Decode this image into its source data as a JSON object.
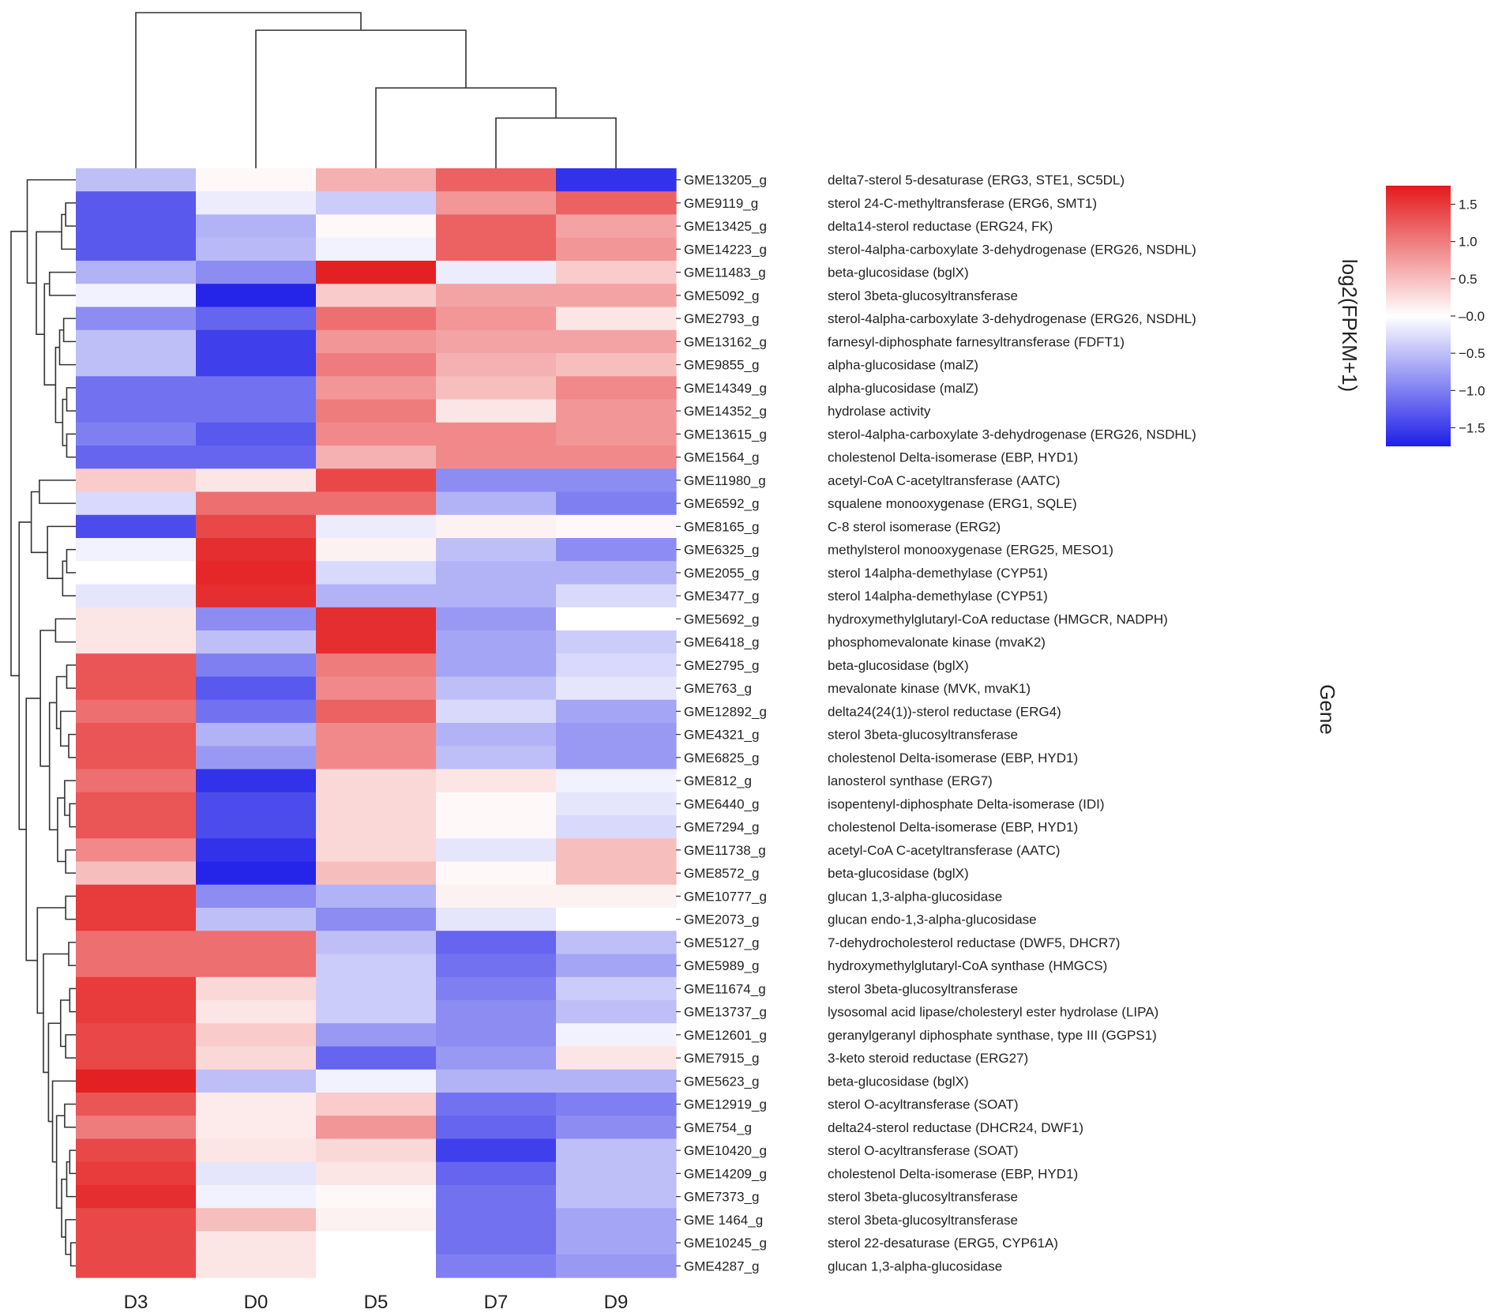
{
  "chart_data": {
    "type": "heatmap",
    "colormap": {
      "low": "#1f1fe8",
      "mid": "#ffffff",
      "high": "#e31a1c"
    },
    "value_range": [
      -1.75,
      1.75
    ],
    "columns": [
      "D3",
      "D0",
      "D5",
      "D7",
      "D9"
    ],
    "rows": [
      {
        "id": "GME13205_g",
        "description": "delta7-sterol 5-desaturase (ERG3, STE1, SC5DL)",
        "values": [
          -0.5,
          0.05,
          0.6,
          1.2,
          -1.6
        ]
      },
      {
        "id": "GME9119_g",
        "description": "sterol 24-C-methyltransferase (ERG6, SMT1)",
        "values": [
          -1.3,
          -0.15,
          -0.4,
          0.8,
          1.2
        ]
      },
      {
        "id": "GME13425_g",
        "description": "delta14-sterol reductase (ERG24, FK)",
        "values": [
          -1.3,
          -0.6,
          0.05,
          1.2,
          0.7
        ]
      },
      {
        "id": "GME14223_g",
        "description": "sterol-4alpha-carboxylate 3-dehydrogenase (ERG26, NSDHL)",
        "values": [
          -1.3,
          -0.55,
          -0.1,
          1.2,
          0.8
        ]
      },
      {
        "id": "GME11483_g",
        "description": "beta-glucosidase (bglX)",
        "values": [
          -0.6,
          -0.9,
          1.7,
          -0.15,
          0.4
        ]
      },
      {
        "id": "GME5092_g",
        "description": "sterol 3beta-glucosyltransferase",
        "values": [
          -0.1,
          -1.7,
          0.4,
          0.7,
          0.7
        ]
      },
      {
        "id": "GME2793_g",
        "description": "sterol-4alpha-carboxylate 3-dehydrogenase (ERG26, NSDHL)",
        "values": [
          -0.9,
          -1.2,
          1.1,
          0.8,
          0.2
        ]
      },
      {
        "id": "GME13162_g",
        "description": "farnesyl-diphosphate farnesyltransferase (FDFT1)",
        "values": [
          -0.5,
          -1.5,
          0.8,
          0.7,
          0.7
        ]
      },
      {
        "id": "GME9855_g",
        "description": "alpha-glucosidase (malZ)",
        "values": [
          -0.5,
          -1.5,
          1.0,
          0.6,
          0.5
        ]
      },
      {
        "id": "GME14349_g",
        "description": "alpha-glucosidase (malZ)",
        "values": [
          -1.1,
          -1.1,
          0.8,
          0.5,
          0.9
        ]
      },
      {
        "id": "GME14352_g",
        "description": "hydrolase activity",
        "values": [
          -1.1,
          -1.1,
          1.0,
          0.2,
          0.8
        ]
      },
      {
        "id": "GME13615_g",
        "description": "sterol-4alpha-carboxylate 3-dehydrogenase (ERG26, NSDHL)",
        "values": [
          -1.0,
          -1.3,
          0.9,
          0.9,
          0.8
        ]
      },
      {
        "id": "GME1564_g",
        "description": "cholestenol Delta-isomerase (EBP, HYD1)",
        "values": [
          -1.2,
          -1.2,
          0.6,
          0.9,
          0.9
        ]
      },
      {
        "id": "GME11980_g",
        "description": "acetyl-CoA C-acetyltransferase (AATC)",
        "values": [
          0.4,
          0.2,
          1.4,
          -0.9,
          -0.9
        ]
      },
      {
        "id": "GME6592_g",
        "description": "squalene monooxygenase (ERG1, SQLE)",
        "values": [
          -0.3,
          1.1,
          1.1,
          -0.6,
          -1.0
        ]
      },
      {
        "id": "GME8165_g",
        "description": "C-8 sterol isomerase (ERG2)",
        "values": [
          -1.4,
          1.4,
          -0.15,
          0.1,
          0.05
        ]
      },
      {
        "id": "GME6325_g",
        "description": "methylsterol monooxygenase (ERG25, MESO1)",
        "values": [
          -0.1,
          1.6,
          0.1,
          -0.5,
          -0.9
        ]
      },
      {
        "id": "GME2055_g",
        "description": "sterol 14alpha-demethylase (CYP51)",
        "values": [
          0.0,
          1.65,
          -0.3,
          -0.6,
          -0.6
        ]
      },
      {
        "id": "GME3477_g",
        "description": "sterol 14alpha-demethylase (CYP51)",
        "values": [
          -0.2,
          1.6,
          -0.6,
          -0.6,
          -0.3
        ]
      },
      {
        "id": "GME5692_g",
        "description": "hydroxymethylglutaryl-CoA reductase (HMGCR, NADPH)",
        "values": [
          0.2,
          -0.9,
          1.6,
          -0.8,
          0.0
        ]
      },
      {
        "id": "GME6418_g",
        "description": "phosphomevalonate kinase (mvaK2)",
        "values": [
          0.2,
          -0.5,
          1.6,
          -0.7,
          -0.4
        ]
      },
      {
        "id": "GME2795_g",
        "description": "beta-glucosidase (bglX)",
        "values": [
          1.3,
          -1.0,
          1.0,
          -0.7,
          -0.3
        ]
      },
      {
        "id": "GME763_g",
        "description": "mevalonate kinase (MVK, mvaK1)",
        "values": [
          1.3,
          -1.3,
          0.9,
          -0.5,
          -0.2
        ]
      },
      {
        "id": "GME12892_g",
        "description": "delta24(24(1))-sterol reductase (ERG4)",
        "values": [
          1.1,
          -1.1,
          1.2,
          -0.3,
          -0.7
        ]
      },
      {
        "id": "GME4321_g",
        "description": "sterol 3beta-glucosyltransferase",
        "values": [
          1.3,
          -0.6,
          0.9,
          -0.6,
          -0.8
        ]
      },
      {
        "id": "GME6825_g",
        "description": "cholestenol Delta-isomerase (EBP, HYD1)",
        "values": [
          1.3,
          -0.8,
          0.9,
          -0.5,
          -0.8
        ]
      },
      {
        "id": "GME812_g",
        "description": "lanosterol synthase (ERG7)",
        "values": [
          1.1,
          -1.6,
          0.3,
          0.2,
          -0.1
        ]
      },
      {
        "id": "GME6440_g",
        "description": "isopentenyl-diphosphate Delta-isomerase (IDI)",
        "values": [
          1.3,
          -1.4,
          0.3,
          0.05,
          -0.2
        ]
      },
      {
        "id": "GME7294_g",
        "description": "cholestenol Delta-isomerase (EBP, HYD1)",
        "values": [
          1.3,
          -1.4,
          0.3,
          0.05,
          -0.3
        ]
      },
      {
        "id": "GME11738_g",
        "description": "acetyl-CoA C-acetyltransferase (AATC)",
        "values": [
          0.9,
          -1.6,
          0.3,
          -0.2,
          0.5
        ]
      },
      {
        "id": "GME8572_g",
        "description": "beta-glucosidase (bglX)",
        "values": [
          0.5,
          -1.7,
          0.5,
          0.05,
          0.5
        ]
      },
      {
        "id": "GME10777_g",
        "description": "glucan 1,3-alpha-glucosidase",
        "values": [
          1.5,
          -0.9,
          -0.6,
          0.1,
          0.1
        ]
      },
      {
        "id": "GME2073_g",
        "description": "glucan endo-1,3-alpha-glucosidase",
        "values": [
          1.5,
          -0.5,
          -0.9,
          -0.2,
          0.0
        ]
      },
      {
        "id": "GME5127_g",
        "description": "7-dehydrocholesterol reductase (DWF5, DHCR7)",
        "values": [
          1.1,
          1.1,
          -0.5,
          -1.2,
          -0.5
        ]
      },
      {
        "id": "GME5989_g",
        "description": "hydroxymethylglutaryl-CoA synthase (HMGCS)",
        "values": [
          1.1,
          1.1,
          -0.4,
          -1.1,
          -0.7
        ]
      },
      {
        "id": "GME11674_g",
        "description": "sterol 3beta-glucosyltransferase",
        "values": [
          1.5,
          0.3,
          -0.4,
          -1.0,
          -0.4
        ]
      },
      {
        "id": "GME13737_g",
        "description": "lysosomal acid lipase/cholesteryl ester hydrolase (LIPA)",
        "values": [
          1.5,
          0.2,
          -0.4,
          -0.9,
          -0.5
        ]
      },
      {
        "id": "GME12601_g",
        "description": "geranylgeranyl diphosphate synthase, type III (GGPS1)",
        "values": [
          1.4,
          0.4,
          -0.8,
          -0.9,
          -0.1
        ]
      },
      {
        "id": "GME7915_g",
        "description": "3-keto steroid reductase (ERG27)",
        "values": [
          1.4,
          0.3,
          -1.2,
          -0.8,
          0.2
        ]
      },
      {
        "id": "GME5623_g",
        "description": "beta-glucosidase (bglX)",
        "values": [
          1.7,
          -0.5,
          -0.1,
          -0.6,
          -0.6
        ]
      },
      {
        "id": "GME12919_g",
        "description": "sterol O-acyltransferase (SOAT)",
        "values": [
          1.3,
          0.15,
          0.4,
          -1.1,
          -1.0
        ]
      },
      {
        "id": "GME754_g",
        "description": "delta24-sterol reductase (DHCR24, DWF1)",
        "values": [
          1.0,
          0.15,
          0.8,
          -1.2,
          -0.9
        ]
      },
      {
        "id": "GME10420_g",
        "description": "sterol O-acyltransferase (SOAT)",
        "values": [
          1.4,
          0.2,
          0.3,
          -1.5,
          -0.5
        ]
      },
      {
        "id": "GME14209_g",
        "description": "cholestenol Delta-isomerase (EBP, HYD1)",
        "values": [
          1.5,
          -0.2,
          0.2,
          -1.2,
          -0.5
        ]
      },
      {
        "id": "GME7373_g",
        "description": "sterol 3beta-glucosyltransferase",
        "values": [
          1.6,
          -0.1,
          0.05,
          -1.1,
          -0.5
        ]
      },
      {
        "id": "GME 1464_g",
        "description": "sterol 3beta-glucosyltransferase",
        "values": [
          1.4,
          0.5,
          0.1,
          -1.1,
          -0.7
        ]
      },
      {
        "id": "GME10245_g",
        "description": "sterol 22-desaturase (ERG5, CYP61A)",
        "values": [
          1.4,
          0.2,
          0.0,
          -1.1,
          -0.7
        ]
      },
      {
        "id": "GME4287_g",
        "description": "glucan 1,3-alpha-glucosidase",
        "values": [
          1.4,
          0.2,
          0.0,
          -1.0,
          -0.8
        ]
      }
    ],
    "colorbar": {
      "title": "log2(FPKM+1)",
      "ticks": [
        1.5,
        1.0,
        0.5,
        0.0,
        -0.5,
        -1.0,
        -1.5
      ],
      "tick_labels": [
        "1.5",
        "1.0",
        "0.5",
        "–0.0",
        "−0.5",
        "−1.0",
        "−1.5"
      ]
    },
    "row_axis_title": "Gene",
    "column_dendrogram": {
      "merges": [
        {
          "a": "col:3",
          "b": "col:4",
          "height": 1.0
        },
        {
          "a": "col:2",
          "b": "node:0",
          "height": 1.6
        },
        {
          "a": "col:1",
          "b": "node:1",
          "height": 2.75
        },
        {
          "a": "col:0",
          "b": "node:2",
          "height": 3.1
        }
      ]
    },
    "row_dendrogram": {
      "merges": [
        {
          "a": "row:1",
          "b": "row:2",
          "height": 0.5
        },
        {
          "a": "node:0",
          "b": "row:3",
          "height": 0.7
        },
        {
          "a": "row:4",
          "b": "row:5",
          "height": 1.3
        },
        {
          "a": "row:6",
          "b": "row:7",
          "height": 0.6
        },
        {
          "a": "node:3",
          "b": "row:8",
          "height": 0.8
        },
        {
          "a": "row:9",
          "b": "row:10",
          "height": 0.45
        },
        {
          "a": "row:11",
          "b": "row:12",
          "height": 0.45
        },
        {
          "a": "node:5",
          "b": "node:6",
          "height": 0.65
        },
        {
          "a": "node:4",
          "b": "node:7",
          "height": 1.0
        },
        {
          "a": "node:8",
          "b": "node:2",
          "height": 1.55
        },
        {
          "a": "node:1",
          "b": "node:9",
          "height": 1.95
        },
        {
          "a": "row:0",
          "b": "node:10",
          "height": 2.4
        },
        {
          "a": "row:13",
          "b": "row:14",
          "height": 1.8
        },
        {
          "a": "row:16",
          "b": "row:17",
          "height": 0.45
        },
        {
          "a": "node:13",
          "b": "row:18",
          "height": 0.65
        },
        {
          "a": "row:15",
          "b": "node:14",
          "height": 1.4
        },
        {
          "a": "node:12",
          "b": "node:15",
          "height": 2.2
        },
        {
          "a": "row:19",
          "b": "row:20",
          "height": 1.0
        },
        {
          "a": "row:21",
          "b": "row:22",
          "height": 0.45
        },
        {
          "a": "row:24",
          "b": "row:25",
          "height": 0.35
        },
        {
          "a": "row:23",
          "b": "node:19",
          "height": 0.75
        },
        {
          "a": "node:18",
          "b": "node:20",
          "height": 0.95
        },
        {
          "a": "row:27",
          "b": "row:28",
          "height": 0.3
        },
        {
          "a": "row:26",
          "b": "node:22",
          "height": 0.55
        },
        {
          "a": "row:29",
          "b": "row:30",
          "height": 0.5
        },
        {
          "a": "node:23",
          "b": "node:24",
          "height": 0.9
        },
        {
          "a": "node:21",
          "b": "node:25",
          "height": 1.3
        },
        {
          "a": "node:17",
          "b": "node:26",
          "height": 1.75
        },
        {
          "a": "row:31",
          "b": "row:32",
          "height": 0.5
        },
        {
          "a": "row:33",
          "b": "row:34",
          "height": 0.35
        },
        {
          "a": "row:35",
          "b": "row:36",
          "height": 0.3
        },
        {
          "a": "row:37",
          "b": "row:38",
          "height": 0.5
        },
        {
          "a": "node:30",
          "b": "node:31",
          "height": 0.75
        },
        {
          "a": "row:40",
          "b": "row:41",
          "height": 0.55
        },
        {
          "a": "row:42",
          "b": "row:43",
          "height": 0.3
        },
        {
          "a": "node:34",
          "b": "row:44",
          "height": 0.45
        },
        {
          "a": "row:46",
          "b": "row:47",
          "height": 0.25
        },
        {
          "a": "row:45",
          "b": "node:36",
          "height": 0.5
        },
        {
          "a": "node:35",
          "b": "node:37",
          "height": 0.7
        },
        {
          "a": "node:33",
          "b": "node:38",
          "height": 0.95
        },
        {
          "a": "row:39",
          "b": "node:39",
          "height": 1.15
        },
        {
          "a": "node:32",
          "b": "node:40",
          "height": 1.35
        },
        {
          "a": "node:29",
          "b": "node:41",
          "height": 1.6
        },
        {
          "a": "node:28",
          "b": "node:42",
          "height": 1.9
        },
        {
          "a": "node:27",
          "b": "node:43",
          "height": 2.45
        },
        {
          "a": "node:16",
          "b": "node:44",
          "height": 2.8
        },
        {
          "a": "node:11",
          "b": "node:45",
          "height": 3.2
        }
      ]
    }
  }
}
